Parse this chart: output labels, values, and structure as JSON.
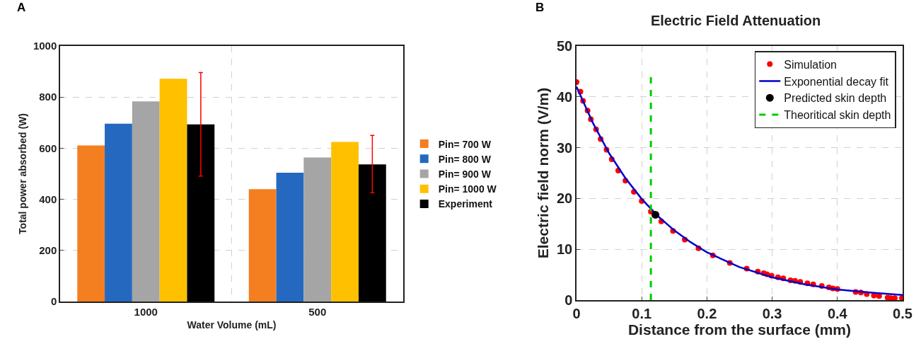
{
  "chart_data": [
    {
      "type": "bar",
      "annotations": [
        "A"
      ],
      "xlabel": "Water Volume (mL)",
      "ylabel": "Total power absorbed (W)",
      "categories": [
        "1000",
        "500"
      ],
      "series": [
        {
          "name": "Pin= 700 W",
          "color": "#f47f20",
          "values": [
            611,
            440
          ]
        },
        {
          "name": "Pin= 800 W",
          "color": "#2568bf",
          "values": [
            696,
            504
          ]
        },
        {
          "name": "Pin= 900 W",
          "color": "#a5a5a5",
          "values": [
            783,
            564
          ]
        },
        {
          "name": "Pin= 1000 W",
          "color": "#ffc000",
          "values": [
            872,
            625
          ]
        },
        {
          "name": "Experiment",
          "color": "#000000",
          "values": [
            693,
            537
          ],
          "errors": [
            [
              491,
              896
            ],
            [
              426,
              650
            ]
          ]
        }
      ],
      "ylim": [
        0,
        1000
      ],
      "yticks": [
        0,
        200,
        400,
        600,
        800,
        1000
      ],
      "grid": true,
      "legend": "right"
    },
    {
      "type": "scatter",
      "title": "Electric Field Attenuation",
      "annotations": [
        "B"
      ],
      "xlabel": "Distance from the surface (mm)",
      "ylabel": "Electric field norm (V/m)",
      "series": [
        {
          "name": "Simulation",
          "type": "scatter",
          "marker": "circle",
          "color": "#ff0000",
          "x": [
            0,
            0.006,
            0.01,
            0.017,
            0.022,
            0.03,
            0.037,
            0.046,
            0.054,
            0.064,
            0.075,
            0.088,
            0.1,
            0.114,
            0.13,
            0.148,
            0.166,
            0.187,
            0.209,
            0.235,
            0.261,
            0.278,
            0.287,
            0.292,
            0.299,
            0.309,
            0.317,
            0.328,
            0.335,
            0.343,
            0.354,
            0.363,
            0.376,
            0.387,
            0.393,
            0.4,
            0.428,
            0.436,
            0.445,
            0.456,
            0.464,
            0.477,
            0.482,
            0.488,
            0.499
          ],
          "values": [
            42.9,
            41.0,
            39.2,
            37.3,
            35.6,
            33.6,
            31.7,
            29.6,
            27.7,
            25.5,
            23.5,
            21.3,
            19.5,
            17.4,
            15.5,
            13.6,
            11.9,
            10.2,
            8.8,
            7.3,
            6.2,
            5.6,
            5.3,
            5.1,
            4.8,
            4.5,
            4.3,
            3.9,
            3.8,
            3.6,
            3.3,
            3.1,
            2.8,
            2.5,
            2.3,
            2.2,
            1.6,
            1.5,
            1.2,
            0.9,
            0.8,
            0.5,
            0.4,
            0.4,
            0.4
          ]
        },
        {
          "name": "Exponential decay fit",
          "type": "line",
          "marker": "none",
          "line_style": "solid",
          "color": "#0000cc",
          "x": [
            0,
            0.025,
            0.05,
            0.075,
            0.1,
            0.125,
            0.15,
            0.175,
            0.2,
            0.25,
            0.3,
            0.35,
            0.4,
            0.45,
            0.5
          ],
          "values": [
            42,
            34.9,
            28.9,
            24.0,
            19.9,
            16.5,
            13.7,
            11.4,
            9.4,
            6.5,
            4.5,
            3.1,
            2.1,
            1.5,
            1.0
          ]
        },
        {
          "name": "Predicted skin depth",
          "type": "scatter",
          "marker": "circle",
          "color": "#000000",
          "x": [
            0.121
          ],
          "values": [
            16.8
          ]
        },
        {
          "name": "Theoritical skin depth",
          "type": "line",
          "marker": "none",
          "line_style": "dashed",
          "color": "#00cc00",
          "x": [
            0.114,
            0.114
          ],
          "values": [
            0,
            44
          ]
        }
      ],
      "xlim": [
        0,
        0.5
      ],
      "xticks": [
        0,
        0.1,
        0.2,
        0.3,
        0.4,
        0.5
      ],
      "ylim": [
        0,
        50
      ],
      "yticks": [
        0,
        10,
        20,
        30,
        40,
        50
      ],
      "grid": true,
      "legend": "top right"
    }
  ]
}
